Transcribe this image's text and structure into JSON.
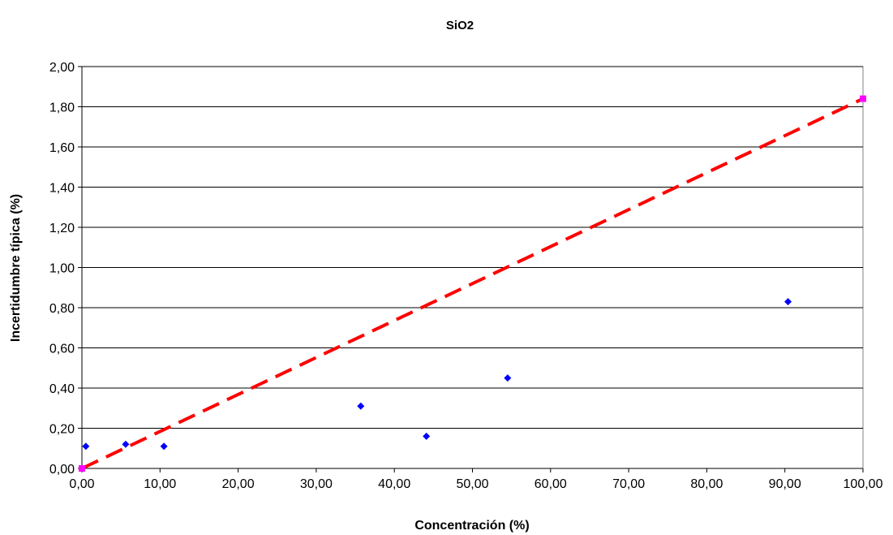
{
  "chart_data": {
    "type": "scatter",
    "title": "SiO2",
    "xlabel": "Concentración (%)",
    "ylabel": "Incertidumbre típica (%)",
    "xlim": [
      0,
      100
    ],
    "ylim": [
      0,
      2
    ],
    "grid": "horizontal",
    "legend": "none",
    "x_ticks": [
      "0,00",
      "10,00",
      "20,00",
      "30,00",
      "40,00",
      "50,00",
      "60,00",
      "70,00",
      "80,00",
      "90,00",
      "100,00"
    ],
    "y_ticks": [
      "0,00",
      "0,20",
      "0,40",
      "0,60",
      "0,80",
      "1,00",
      "1,20",
      "1,40",
      "1,60",
      "1,80",
      "2,00"
    ],
    "series": [
      {
        "type": "scatter",
        "color": "#0000ff",
        "marker": "diamond",
        "points": [
          {
            "x": 0.5,
            "y": 0.11
          },
          {
            "x": 5.6,
            "y": 0.12
          },
          {
            "x": 10.5,
            "y": 0.11
          },
          {
            "x": 35.7,
            "y": 0.31
          },
          {
            "x": 44.1,
            "y": 0.16
          },
          {
            "x": 54.5,
            "y": 0.45
          },
          {
            "x": 90.4,
            "y": 0.83
          }
        ]
      },
      {
        "type": "line",
        "color": "#ff0000",
        "style": "dashed",
        "marker": "square",
        "marker_color": "#ff00ff",
        "points": [
          {
            "x": 0,
            "y": 0
          },
          {
            "x": 100,
            "y": 1.84
          }
        ]
      }
    ]
  }
}
